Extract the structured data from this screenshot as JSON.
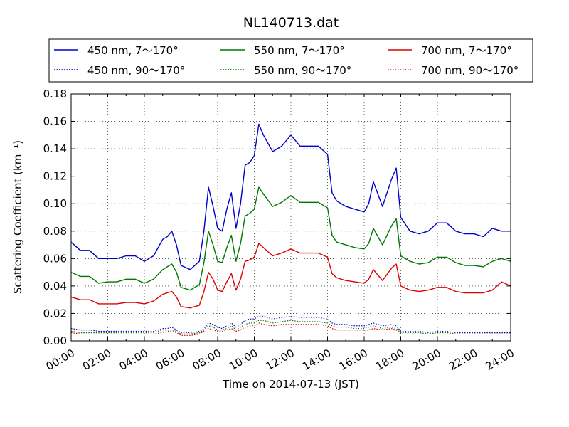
{
  "chart_data": {
    "type": "line",
    "title": "NL140713.dat",
    "xlabel": "Time on 2014-07-13 (JST)",
    "ylabel": "Scattering Coefficient (km⁻¹)",
    "x_unit": "hour",
    "xlim": [
      0,
      24
    ],
    "ylim": [
      0,
      0.18
    ],
    "grid": true,
    "legend_position": "top",
    "x_tick_labels": [
      "00:00",
      "02:00",
      "04:00",
      "06:00",
      "08:00",
      "10:00",
      "12:00",
      "14:00",
      "16:00",
      "18:00",
      "20:00",
      "22:00",
      "24:00"
    ],
    "y_tick_labels": [
      "0.00",
      "0.02",
      "0.04",
      "0.06",
      "0.08",
      "0.10",
      "0.12",
      "0.14",
      "0.16",
      "0.18"
    ],
    "x": [
      0,
      0.5,
      1,
      1.5,
      2,
      2.5,
      3,
      3.5,
      4,
      4.5,
      5,
      5.25,
      5.5,
      5.75,
      6,
      6.5,
      7,
      7.25,
      7.5,
      7.75,
      8,
      8.25,
      8.5,
      8.75,
      9,
      9.25,
      9.5,
      9.75,
      10,
      10.25,
      10.5,
      11,
      11.5,
      12,
      12.5,
      13,
      13.5,
      14,
      14.25,
      14.5,
      15,
      15.5,
      16,
      16.25,
      16.5,
      17,
      17.5,
      17.75,
      18,
      18.5,
      19,
      19.5,
      20,
      20.5,
      21,
      21.5,
      22,
      22.5,
      23,
      23.5,
      24
    ],
    "series": [
      {
        "name": "450 nm, 7～170°",
        "color": "#0000cc",
        "style": "solid",
        "values": [
          0.072,
          0.066,
          0.066,
          0.06,
          0.06,
          0.06,
          0.062,
          0.062,
          0.058,
          0.062,
          0.074,
          0.076,
          0.08,
          0.07,
          0.055,
          0.052,
          0.058,
          0.08,
          0.112,
          0.098,
          0.082,
          0.08,
          0.096,
          0.108,
          0.082,
          0.1,
          0.128,
          0.13,
          0.135,
          0.158,
          0.15,
          0.138,
          0.142,
          0.15,
          0.142,
          0.142,
          0.142,
          0.136,
          0.108,
          0.102,
          0.098,
          0.096,
          0.094,
          0.1,
          0.116,
          0.098,
          0.118,
          0.126,
          0.09,
          0.08,
          0.078,
          0.08,
          0.086,
          0.086,
          0.08,
          0.078,
          0.078,
          0.076,
          0.082,
          0.08,
          0.08
        ]
      },
      {
        "name": "550 nm, 7～170°",
        "color": "#007700",
        "style": "solid",
        "values": [
          0.05,
          0.047,
          0.047,
          0.042,
          0.043,
          0.043,
          0.045,
          0.045,
          0.042,
          0.045,
          0.052,
          0.054,
          0.056,
          0.05,
          0.039,
          0.037,
          0.041,
          0.057,
          0.08,
          0.07,
          0.058,
          0.057,
          0.068,
          0.077,
          0.058,
          0.071,
          0.091,
          0.093,
          0.096,
          0.112,
          0.107,
          0.098,
          0.101,
          0.106,
          0.101,
          0.101,
          0.101,
          0.097,
          0.077,
          0.072,
          0.07,
          0.068,
          0.067,
          0.071,
          0.082,
          0.07,
          0.084,
          0.089,
          0.062,
          0.058,
          0.056,
          0.057,
          0.061,
          0.061,
          0.057,
          0.055,
          0.055,
          0.054,
          0.058,
          0.06,
          0.058
        ]
      },
      {
        "name": "700 nm, 7～170°",
        "color": "#dd0000",
        "style": "solid",
        "values": [
          0.032,
          0.03,
          0.03,
          0.027,
          0.027,
          0.027,
          0.028,
          0.028,
          0.027,
          0.029,
          0.034,
          0.035,
          0.036,
          0.032,
          0.025,
          0.024,
          0.026,
          0.036,
          0.05,
          0.045,
          0.037,
          0.036,
          0.043,
          0.049,
          0.037,
          0.045,
          0.058,
          0.059,
          0.061,
          0.071,
          0.068,
          0.062,
          0.064,
          0.067,
          0.064,
          0.064,
          0.064,
          0.061,
          0.049,
          0.046,
          0.044,
          0.043,
          0.042,
          0.045,
          0.052,
          0.044,
          0.053,
          0.056,
          0.04,
          0.037,
          0.036,
          0.037,
          0.039,
          0.039,
          0.036,
          0.035,
          0.035,
          0.035,
          0.037,
          0.043,
          0.04
        ]
      },
      {
        "name": "450 nm, 90～170°",
        "color": "#0000cc",
        "style": "dotted",
        "values": [
          0.009,
          0.008,
          0.008,
          0.007,
          0.007,
          0.007,
          0.007,
          0.007,
          0.007,
          0.007,
          0.009,
          0.009,
          0.01,
          0.008,
          0.006,
          0.006,
          0.007,
          0.009,
          0.013,
          0.012,
          0.01,
          0.009,
          0.011,
          0.013,
          0.01,
          0.012,
          0.015,
          0.016,
          0.016,
          0.018,
          0.018,
          0.016,
          0.017,
          0.018,
          0.017,
          0.017,
          0.017,
          0.016,
          0.013,
          0.012,
          0.012,
          0.011,
          0.011,
          0.012,
          0.013,
          0.011,
          0.012,
          0.011,
          0.007,
          0.007,
          0.007,
          0.006,
          0.007,
          0.007,
          0.006,
          0.006,
          0.006,
          0.006,
          0.006,
          0.006,
          0.006
        ]
      },
      {
        "name": "550 nm, 90～170°",
        "color": "#007700",
        "style": "dotted",
        "values": [
          0.007,
          0.006,
          0.006,
          0.006,
          0.006,
          0.006,
          0.006,
          0.006,
          0.006,
          0.006,
          0.008,
          0.008,
          0.008,
          0.007,
          0.005,
          0.005,
          0.006,
          0.008,
          0.011,
          0.01,
          0.008,
          0.008,
          0.009,
          0.011,
          0.008,
          0.01,
          0.012,
          0.013,
          0.013,
          0.015,
          0.015,
          0.013,
          0.014,
          0.015,
          0.014,
          0.014,
          0.014,
          0.013,
          0.011,
          0.01,
          0.01,
          0.009,
          0.009,
          0.01,
          0.011,
          0.009,
          0.01,
          0.009,
          0.006,
          0.006,
          0.006,
          0.005,
          0.006,
          0.006,
          0.005,
          0.005,
          0.005,
          0.005,
          0.005,
          0.005,
          0.005
        ]
      },
      {
        "name": "700 nm, 90～170°",
        "color": "#dd0000",
        "style": "dotted",
        "values": [
          0.006,
          0.005,
          0.005,
          0.005,
          0.005,
          0.005,
          0.005,
          0.005,
          0.005,
          0.005,
          0.006,
          0.007,
          0.007,
          0.006,
          0.004,
          0.004,
          0.005,
          0.007,
          0.009,
          0.008,
          0.007,
          0.007,
          0.008,
          0.009,
          0.007,
          0.008,
          0.01,
          0.011,
          0.011,
          0.013,
          0.012,
          0.011,
          0.012,
          0.012,
          0.012,
          0.012,
          0.012,
          0.011,
          0.009,
          0.008,
          0.008,
          0.008,
          0.008,
          0.008,
          0.009,
          0.008,
          0.009,
          0.008,
          0.005,
          0.005,
          0.005,
          0.005,
          0.005,
          0.005,
          0.005,
          0.005,
          0.005,
          0.005,
          0.005,
          0.005,
          0.005
        ]
      }
    ]
  }
}
